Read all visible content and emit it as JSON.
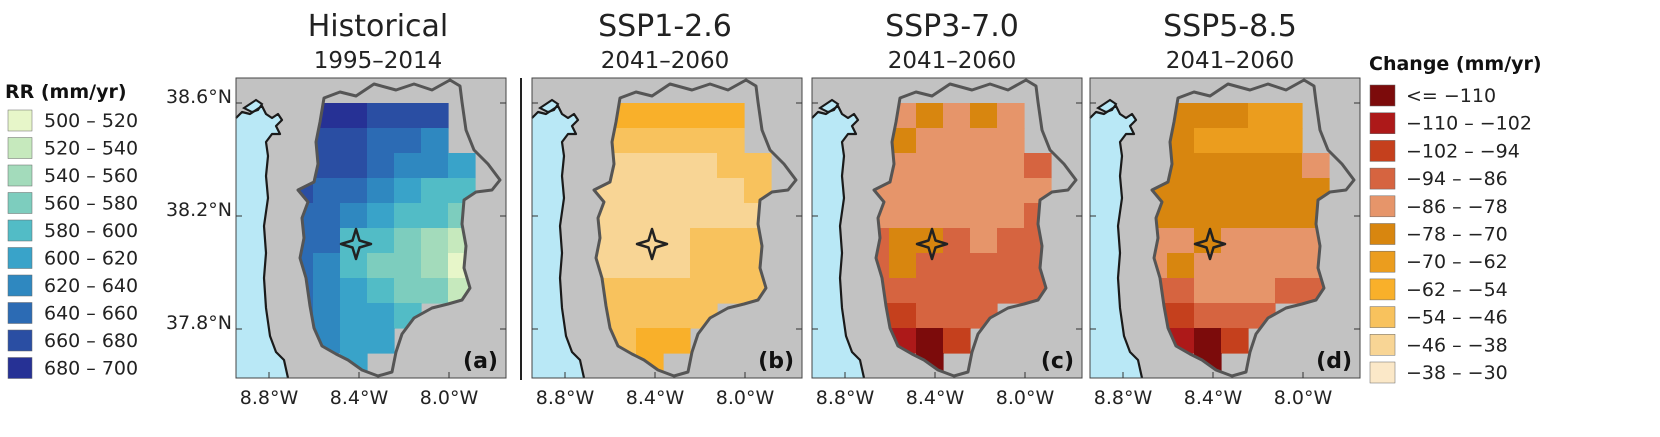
{
  "colors": {
    "land": "#c2c2c2",
    "sea": "#b9e8f6",
    "basin_outline": "#555555",
    "coastline": "#1a1a1a",
    "marker": "#222222"
  },
  "left_legend": {
    "title": "RR (mm/yr)",
    "items": [
      {
        "label": "500 – 520",
        "color": "#e7f6c9"
      },
      {
        "label": "520 – 540",
        "color": "#c6e9bd"
      },
      {
        "label": "540 – 560",
        "color": "#a3dbbb"
      },
      {
        "label": "560 – 580",
        "color": "#7dcdbe"
      },
      {
        "label": "580 – 600",
        "color": "#52bcc6"
      },
      {
        "label": "600 – 620",
        "color": "#39a3c9"
      },
      {
        "label": "620 – 640",
        "color": "#2f88c0"
      },
      {
        "label": "640 – 660",
        "color": "#2c6bb4"
      },
      {
        "label": "660 – 680",
        "color": "#2a4ea3"
      },
      {
        "label": "680 – 700",
        "color": "#263195"
      }
    ]
  },
  "right_legend": {
    "title": "Change (mm/yr)",
    "items": [
      {
        "label": "<= −110",
        "color": "#7c0b0b"
      },
      {
        "label": "−110 – −102",
        "color": "#ad1919"
      },
      {
        "label": "−102 – −94",
        "color": "#c5401d"
      },
      {
        "label": "−94 – −86",
        "color": "#d66440"
      },
      {
        "label": "−86 – −78",
        "color": "#e6956a"
      },
      {
        "label": "−78 – −70",
        "color": "#d8860f"
      },
      {
        "label": "−70 – −62",
        "color": "#eb9d1e"
      },
      {
        "label": "−62 – −54",
        "color": "#f9b02a"
      },
      {
        "label": "−54 – −46",
        "color": "#f8c25d"
      },
      {
        "label": "−46 – −38",
        "color": "#f8d595"
      },
      {
        "label": "−38 – −30",
        "color": "#fbe8c8"
      }
    ]
  },
  "panels": [
    {
      "title": "Historical",
      "period": "1995–2014",
      "label": "(a)",
      "scale": "rr",
      "grid": [
        "..........",
        "...99888..",
        "..888776..",
        "..8887665.",
        "..8776544.",
        "..7765443.",
        ".97744321.",
        ".87643320.",
        "..7654331.",
        "..76554...",
        "...655....",
        "....5....."
      ]
    },
    {
      "title": "SSP1-2.6",
      "period": "2041–2060",
      "label": "(b)",
      "scale": "chg",
      "grid": [
        "..........",
        "...77777..",
        "..888888..",
        "..9999988.",
        "..9999998.",
        "..9999999.",
        ".999998888",
        ".99999888.",
        "..8888888.",
        "..88888...",
        "...877....",
        "....7....."
      ]
    },
    {
      "title": "SSP3-7.0",
      "period": "2041–2060",
      "label": "(c)",
      "scale": "chg",
      "grid": [
        "..........",
        "...45454..",
        "..554444..",
        "..5444443.",
        "..4444444.",
        "..4444443.",
        ".435534333",
        ".33533333.",
        "..3333333.",
        "..22333...",
        "...102....",
        "....0....."
      ]
    },
    {
      "title": "SSP5-8.5",
      "period": "2041–2060",
      "label": "(d)",
      "scale": "chg",
      "grid": [
        "..........",
        "...55566..",
        "..556666..",
        "..5555554.",
        "..5555555.",
        "..5555555.",
        ".444544444",
        ".44544444.",
        "..3344433.",
        "..22333...",
        "...102....",
        "....0....."
      ]
    }
  ],
  "axes": {
    "x_ticks": [
      "8.8°W",
      "8.4°W",
      "8.0°W"
    ],
    "y_ticks": [
      "38.6°N",
      "38.2°N",
      "37.8°N"
    ]
  }
}
